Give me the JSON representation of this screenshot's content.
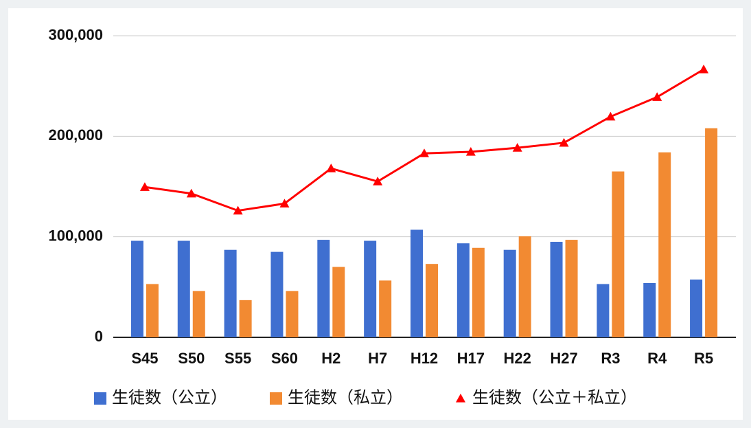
{
  "chart_data": {
    "type": "bar-line",
    "categories": [
      "S45",
      "S50",
      "S55",
      "S60",
      "H2",
      "H7",
      "H12",
      "H17",
      "H22",
      "H27",
      "R3",
      "R4",
      "R5"
    ],
    "series": [
      {
        "name": "生徒数（公立）",
        "type": "bar",
        "color": "#3f6fd0",
        "values": [
          96000,
          96000,
          87000,
          85000,
          97000,
          96000,
          107000,
          93500,
          87000,
          95000,
          53000,
          54000,
          57500
        ]
      },
      {
        "name": "生徒数（私立）",
        "type": "bar",
        "color": "#f28a32",
        "values": [
          53000,
          46000,
          37000,
          46000,
          70000,
          56500,
          73000,
          89000,
          100500,
          97000,
          165000,
          184000,
          208000
        ]
      },
      {
        "name": "生徒数（公立＋私立）",
        "type": "line",
        "color": "#ff0000",
        "values": [
          149500,
          143000,
          126000,
          133000,
          168000,
          155000,
          183000,
          184500,
          188500,
          193500,
          219500,
          239000,
          266500
        ]
      }
    ],
    "ylim": [
      0,
      300000
    ],
    "yticks": [
      0,
      {
        "value": 100000,
        "label": "100,000"
      },
      {
        "value": 200000,
        "label": "200,000"
      },
      {
        "value": 300000,
        "label": "300,000"
      }
    ],
    "grid": true,
    "legend": "bottom"
  }
}
